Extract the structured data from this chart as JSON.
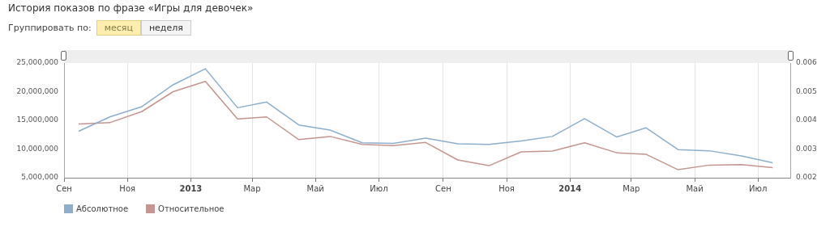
{
  "chart_data": {
    "type": "line",
    "title": "История показов по фразе «Игры для девочек»",
    "annotations": [
      "Группировать по:",
      "месяц",
      "неделя"
    ],
    "x": [
      "2012-09-15",
      "2012-10-15",
      "2012-11-15",
      "2012-12-15",
      "2013-01-15",
      "2013-02-15",
      "2013-03-15",
      "2013-04-15",
      "2013-05-15",
      "2013-06-15",
      "2013-07-15",
      "2013-08-15",
      "2013-09-15",
      "2013-10-15",
      "2013-11-15",
      "2013-12-15",
      "2014-01-15",
      "2014-02-15",
      "2014-03-15",
      "2014-04-15",
      "2014-05-15",
      "2014-06-15",
      "2014-07-15"
    ],
    "xlim": [
      "2012-09-01",
      "2014-08-01"
    ],
    "xticks": [
      {
        "value": "2012-09-01",
        "label": "Сен"
      },
      {
        "value": "2012-11-01",
        "label": "Ноя"
      },
      {
        "value": "2013-01-01",
        "label": "2013"
      },
      {
        "value": "2013-03-01",
        "label": "Мар"
      },
      {
        "value": "2013-05-01",
        "label": "Май"
      },
      {
        "value": "2013-07-01",
        "label": "Июл"
      },
      {
        "value": "2013-09-01",
        "label": "Сен"
      },
      {
        "value": "2013-11-01",
        "label": "Ноя"
      },
      {
        "value": "2014-01-01",
        "label": "2014"
      },
      {
        "value": "2014-03-01",
        "label": "Мар"
      },
      {
        "value": "2014-05-01",
        "label": "Май"
      },
      {
        "value": "2014-07-01",
        "label": "Июл"
      }
    ],
    "ylim": [
      5000000,
      25000000
    ],
    "yticks": [
      {
        "value": 5000000,
        "label": "5,000,000"
      },
      {
        "value": 10000000,
        "label": "10,000,000"
      },
      {
        "value": 15000000,
        "label": "15,000,000"
      },
      {
        "value": 20000000,
        "label": "20,000,000"
      },
      {
        "value": 25000000,
        "label": "25,000,000"
      }
    ],
    "y2lim": [
      0.002,
      0.006
    ],
    "y2ticks": [
      0.002,
      0.003,
      0.004,
      0.005,
      0.006
    ],
    "grid": "x",
    "legend": "bottom left",
    "marker": "none",
    "line_style": "solid",
    "series": [
      {
        "name": "Абсолютное",
        "color": "#8eafcb",
        "values": [
          13100000,
          15600000,
          17400000,
          21200000,
          24000000,
          17200000,
          18200000,
          14200000,
          13300000,
          11100000,
          11000000,
          11900000,
          10900000,
          10800000,
          11400000,
          12200000,
          15300000,
          12100000,
          13700000,
          9900000,
          9700000,
          8800000,
          7600000
        ]
      },
      {
        "name": "Относительное",
        "color": "#c4968f",
        "axis": "y2",
        "values": [
          0.00387,
          0.00392,
          0.00431,
          0.005,
          0.00536,
          0.00405,
          0.00412,
          0.00333,
          0.00344,
          0.00316,
          0.00312,
          0.00323,
          0.00262,
          0.00242,
          0.0029,
          0.00293,
          0.00322,
          0.00287,
          0.00282,
          0.00228,
          0.00244,
          0.00246,
          0.00235
        ]
      }
    ]
  }
}
